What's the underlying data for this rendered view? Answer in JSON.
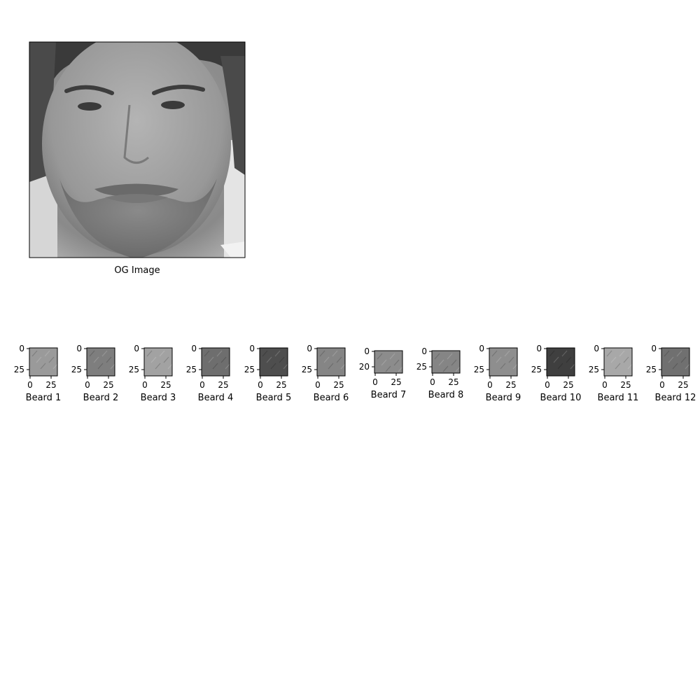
{
  "main_image": {
    "caption": "OG Image"
  },
  "patches": [
    {
      "label": "Beard 1",
      "y_ticks": [
        "0",
        "25"
      ],
      "x_ticks": [
        "0",
        "25"
      ],
      "tone": "#9a9a9a"
    },
    {
      "label": "Beard 2",
      "y_ticks": [
        "0",
        "25"
      ],
      "x_ticks": [
        "0",
        "25"
      ],
      "tone": "#7e7e7e"
    },
    {
      "label": "Beard 3",
      "y_ticks": [
        "0",
        "25"
      ],
      "x_ticks": [
        "0",
        "25"
      ],
      "tone": "#a2a2a2"
    },
    {
      "label": "Beard 4",
      "y_ticks": [
        "0",
        "25"
      ],
      "x_ticks": [
        "0",
        "25"
      ],
      "tone": "#6e6e6e"
    },
    {
      "label": "Beard 5",
      "y_ticks": [
        "0",
        "25"
      ],
      "x_ticks": [
        "0",
        "25"
      ],
      "tone": "#4e4e4e"
    },
    {
      "label": "Beard 6",
      "y_ticks": [
        "0",
        "25"
      ],
      "x_ticks": [
        "0",
        "25"
      ],
      "tone": "#858585"
    },
    {
      "label": "Beard 7",
      "y_ticks": [
        "0",
        "20"
      ],
      "x_ticks": [
        "0",
        "25"
      ],
      "tone": "#8c8c8c"
    },
    {
      "label": "Beard 8",
      "y_ticks": [
        "0",
        "25"
      ],
      "x_ticks": [
        "0",
        "25"
      ],
      "tone": "#858585"
    },
    {
      "label": "Beard 9",
      "y_ticks": [
        "0",
        "25"
      ],
      "x_ticks": [
        "0",
        "25"
      ],
      "tone": "#8e8e8e"
    },
    {
      "label": "Beard 10",
      "y_ticks": [
        "0",
        "25"
      ],
      "x_ticks": [
        "0",
        "25"
      ],
      "tone": "#3f3f3f"
    },
    {
      "label": "Beard 11",
      "y_ticks": [
        "0",
        "25"
      ],
      "x_ticks": [
        "0",
        "25"
      ],
      "tone": "#a8a8a8"
    },
    {
      "label": "Beard 12",
      "y_ticks": [
        "0",
        "25"
      ],
      "x_ticks": [
        "0",
        "25"
      ],
      "tone": "#707070"
    }
  ]
}
